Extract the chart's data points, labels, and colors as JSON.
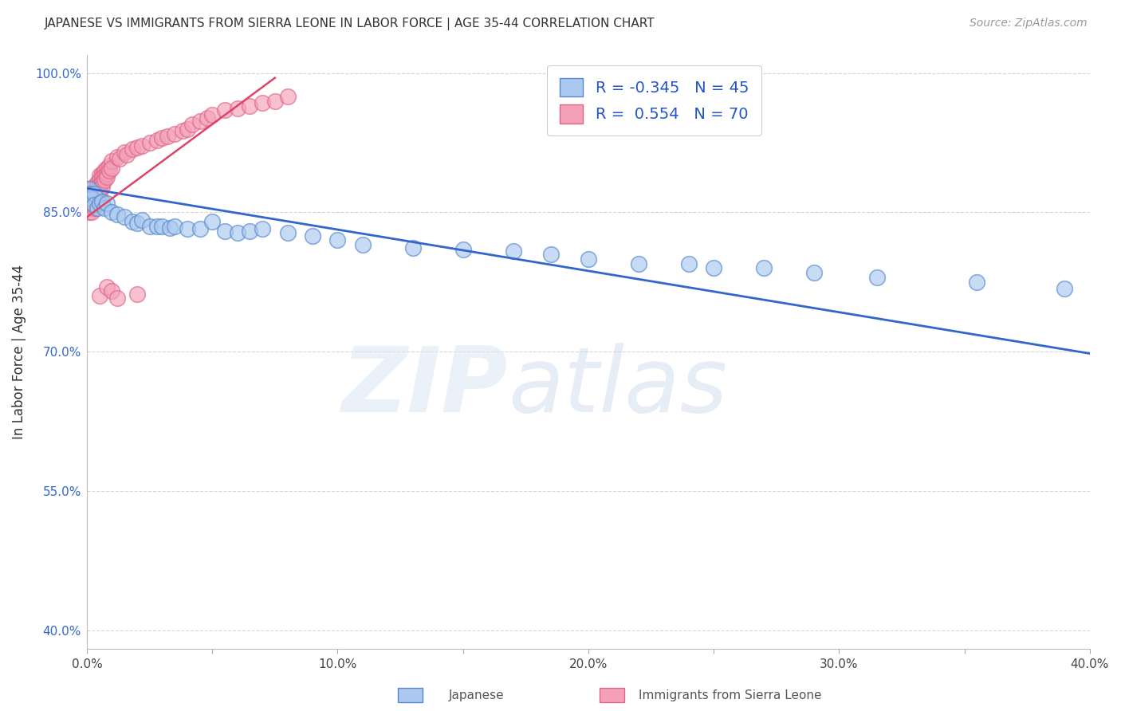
{
  "title": "JAPANESE VS IMMIGRANTS FROM SIERRA LEONE IN LABOR FORCE | AGE 35-44 CORRELATION CHART",
  "source": "Source: ZipAtlas.com",
  "ylabel": "In Labor Force | Age 35-44",
  "xlim": [
    0.0,
    0.4
  ],
  "ylim": [
    0.38,
    1.02
  ],
  "xticks": [
    0.0,
    0.05,
    0.1,
    0.15,
    0.2,
    0.25,
    0.3,
    0.35,
    0.4
  ],
  "xticklabels": [
    "0.0%",
    "",
    "10.0%",
    "",
    "20.0%",
    "",
    "30.0%",
    "",
    "40.0%"
  ],
  "yticks": [
    0.4,
    0.55,
    0.7,
    0.85,
    1.0
  ],
  "yticklabels": [
    "40.0%",
    "55.0%",
    "70.0%",
    "85.0%",
    "100.0%"
  ],
  "grid_color": "#cccccc",
  "background_color": "#ffffff",
  "japanese_color": "#aac8f0",
  "sierra_leone_color": "#f4a0b8",
  "japanese_edge_color": "#5588cc",
  "sierra_leone_edge_color": "#dd6688",
  "blue_line_color": "#3366cc",
  "pink_line_color": "#dd4466",
  "legend_R_japanese": "-0.345",
  "legend_N_japanese": "45",
  "legend_R_sierra": " 0.554",
  "legend_N_sierra": "70",
  "legend_label_japanese": "Japanese",
  "legend_label_sierra": "Immigrants from Sierra Leone",
  "jap_x": [
    0.001,
    0.001,
    0.002,
    0.003,
    0.003,
    0.004,
    0.005,
    0.006,
    0.007,
    0.008,
    0.01,
    0.012,
    0.015,
    0.018,
    0.02,
    0.022,
    0.025,
    0.028,
    0.03,
    0.033,
    0.035,
    0.04,
    0.045,
    0.05,
    0.055,
    0.06,
    0.065,
    0.07,
    0.08,
    0.09,
    0.1,
    0.11,
    0.13,
    0.15,
    0.17,
    0.185,
    0.2,
    0.22,
    0.24,
    0.25,
    0.27,
    0.29,
    0.315,
    0.355,
    0.39
  ],
  "jap_y": [
    0.875,
    0.87,
    0.865,
    0.87,
    0.858,
    0.855,
    0.86,
    0.862,
    0.855,
    0.86,
    0.85,
    0.848,
    0.845,
    0.84,
    0.838,
    0.842,
    0.835,
    0.835,
    0.835,
    0.833,
    0.835,
    0.832,
    0.832,
    0.84,
    0.83,
    0.828,
    0.83,
    0.832,
    0.828,
    0.825,
    0.82,
    0.815,
    0.812,
    0.81,
    0.808,
    0.805,
    0.8,
    0.795,
    0.795,
    0.79,
    0.79,
    0.785,
    0.78,
    0.775,
    0.768
  ],
  "sl_x": [
    0.001,
    0.001,
    0.001,
    0.001,
    0.001,
    0.002,
    0.002,
    0.002,
    0.002,
    0.002,
    0.002,
    0.003,
    0.003,
    0.003,
    0.003,
    0.003,
    0.003,
    0.004,
    0.004,
    0.004,
    0.004,
    0.004,
    0.005,
    0.005,
    0.005,
    0.005,
    0.005,
    0.006,
    0.006,
    0.006,
    0.006,
    0.007,
    0.007,
    0.007,
    0.008,
    0.008,
    0.008,
    0.009,
    0.009,
    0.01,
    0.01,
    0.012,
    0.013,
    0.015,
    0.016,
    0.018,
    0.02,
    0.022,
    0.025,
    0.028,
    0.03,
    0.032,
    0.035,
    0.038,
    0.04,
    0.042,
    0.045,
    0.048,
    0.05,
    0.055,
    0.06,
    0.065,
    0.07,
    0.075,
    0.08,
    0.005,
    0.008,
    0.01,
    0.012,
    0.02
  ],
  "sl_y": [
    0.87,
    0.875,
    0.865,
    0.858,
    0.85,
    0.875,
    0.87,
    0.865,
    0.858,
    0.85,
    0.862,
    0.878,
    0.872,
    0.868,
    0.862,
    0.858,
    0.855,
    0.882,
    0.878,
    0.872,
    0.868,
    0.862,
    0.89,
    0.885,
    0.88,
    0.875,
    0.87,
    0.892,
    0.888,
    0.882,
    0.878,
    0.895,
    0.89,
    0.885,
    0.898,
    0.892,
    0.888,
    0.9,
    0.895,
    0.905,
    0.898,
    0.91,
    0.908,
    0.915,
    0.912,
    0.918,
    0.92,
    0.922,
    0.925,
    0.928,
    0.93,
    0.932,
    0.935,
    0.938,
    0.94,
    0.945,
    0.948,
    0.952,
    0.955,
    0.96,
    0.962,
    0.965,
    0.968,
    0.97,
    0.975,
    0.76,
    0.77,
    0.765,
    0.758,
    0.762
  ],
  "jap_line_x0": 0.0,
  "jap_line_x1": 0.4,
  "jap_line_y0": 0.876,
  "jap_line_y1": 0.698,
  "sl_line_x0": 0.0,
  "sl_line_x1": 0.075,
  "sl_line_y0": 0.845,
  "sl_line_y1": 0.995
}
